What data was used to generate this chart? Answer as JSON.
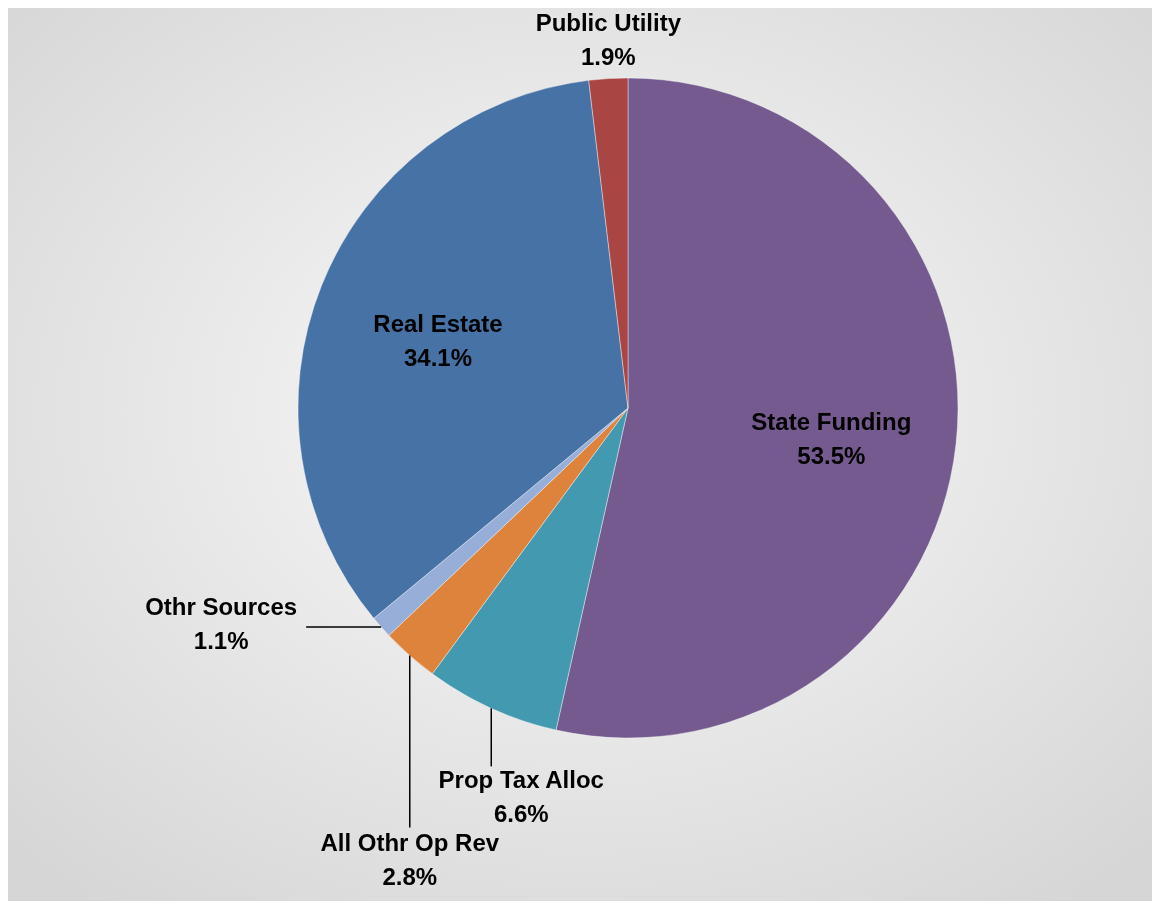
{
  "chart_data": {
    "type": "pie",
    "categories": [
      "State Funding",
      "Prop Tax Alloc",
      "All Othr Op Rev",
      "Othr Sources",
      "Real Estate",
      "Public Utility"
    ],
    "values": [
      53.5,
      6.6,
      2.8,
      1.1,
      34.1,
      1.9
    ],
    "value_labels": [
      "53.5%",
      "6.6%",
      "2.8%",
      "1.1%",
      "34.1%",
      "1.9%"
    ],
    "colors": [
      "#745a8e",
      "#4299b0",
      "#dd833b",
      "#97aed8",
      "#4672a5",
      "#a94542"
    ]
  }
}
